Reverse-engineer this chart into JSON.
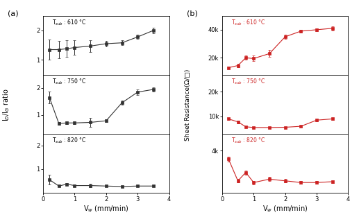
{
  "panel_a": {
    "subplot1": {
      "label": "T$_{sub}$ : 610 °C",
      "x": [
        0.2,
        0.5,
        0.75,
        1.0,
        1.5,
        2.0,
        2.5,
        3.0,
        3.5
      ],
      "y": [
        1.35,
        1.35,
        1.38,
        1.42,
        1.47,
        1.55,
        1.58,
        1.78,
        2.0
      ],
      "yerr": [
        0.35,
        0.3,
        0.28,
        0.25,
        0.2,
        0.1,
        0.08,
        0.07,
        0.1
      ],
      "ylim": [
        0.5,
        2.5
      ],
      "yticks": [
        1,
        2
      ]
    },
    "subplot2": {
      "label": "T$_{sub}$ : 750 °C",
      "x": [
        0.2,
        0.5,
        0.75,
        1.0,
        1.5,
        2.0,
        2.5,
        3.0,
        3.5
      ],
      "y": [
        1.65,
        0.68,
        0.7,
        0.7,
        0.72,
        0.78,
        1.45,
        1.85,
        1.95
      ],
      "yerr": [
        0.22,
        0.05,
        0.05,
        0.05,
        0.18,
        0.05,
        0.08,
        0.1,
        0.07
      ],
      "ylim": [
        0.3,
        2.5
      ],
      "yticks": [
        1,
        2
      ]
    },
    "subplot3": {
      "label": "T$_{sub}$ : 820 °C",
      "x": [
        0.2,
        0.5,
        0.75,
        1.0,
        1.5,
        2.0,
        2.5,
        3.0,
        3.5
      ],
      "y": [
        0.55,
        0.28,
        0.36,
        0.3,
        0.3,
        0.28,
        0.26,
        0.28,
        0.28
      ],
      "yerr": [
        0.2,
        0.03,
        0.04,
        0.04,
        0.08,
        0.03,
        0.03,
        0.03,
        0.03
      ],
      "ylim": [
        0.0,
        2.5
      ],
      "yticks": [
        1,
        2
      ]
    },
    "ylabel": "I$_D$/I$_G$ ratio",
    "xlabel": "V$_w$ (mm/min)"
  },
  "panel_b": {
    "subplot1": {
      "label": "T$_{sub}$ : 610 °C",
      "x": [
        0.2,
        0.5,
        0.75,
        1.0,
        1.5,
        2.0,
        2.5,
        3.0,
        3.5
      ],
      "y": [
        13000,
        14500,
        20000,
        19500,
        23000,
        35000,
        39000,
        40000,
        41000
      ],
      "yerr": [
        800,
        1200,
        1500,
        2000,
        2500,
        1500,
        1000,
        1000,
        1500
      ],
      "ylim": [
        8000,
        50000
      ],
      "yticks": [
        20000,
        40000
      ],
      "yticklabels": [
        "20k",
        "40k"
      ]
    },
    "subplot2": {
      "label": "T$_{sub}$ : 750 °C",
      "x": [
        0.2,
        0.5,
        0.75,
        1.0,
        1.5,
        2.0,
        2.5,
        3.0,
        3.5
      ],
      "y": [
        9000,
        7800,
        5800,
        5500,
        5500,
        5600,
        6000,
        8500,
        9000
      ],
      "yerr": [
        500,
        600,
        300,
        300,
        200,
        200,
        200,
        400,
        400
      ],
      "ylim": [
        3000,
        27000
      ],
      "yticks": [
        10000,
        20000
      ],
      "yticklabels": [
        "10k",
        "20k"
      ]
    },
    "subplot3": {
      "label": "T$_{sub}$ : 820 °C",
      "x": [
        0.2,
        0.5,
        0.75,
        1.0,
        1.5,
        2.0,
        2.5,
        3.0,
        3.5
      ],
      "y": [
        3500,
        2200,
        2700,
        2100,
        2300,
        2200,
        2100,
        2100,
        2150
      ],
      "yerr": [
        150,
        100,
        120,
        100,
        120,
        100,
        80,
        80,
        80
      ],
      "ylim": [
        1500,
        5000
      ],
      "yticks": [
        4000
      ],
      "yticklabels": [
        "4k"
      ]
    },
    "ylabel": "Sheet Resistance(Ω/□)",
    "xlabel": "V$_w$ (mm/min)"
  },
  "color_a": "#333333",
  "color_b": "#cc2222",
  "marker": "s",
  "markersize": 2.5,
  "linewidth": 0.8,
  "elinewidth": 0.7,
  "capsize": 1.5
}
